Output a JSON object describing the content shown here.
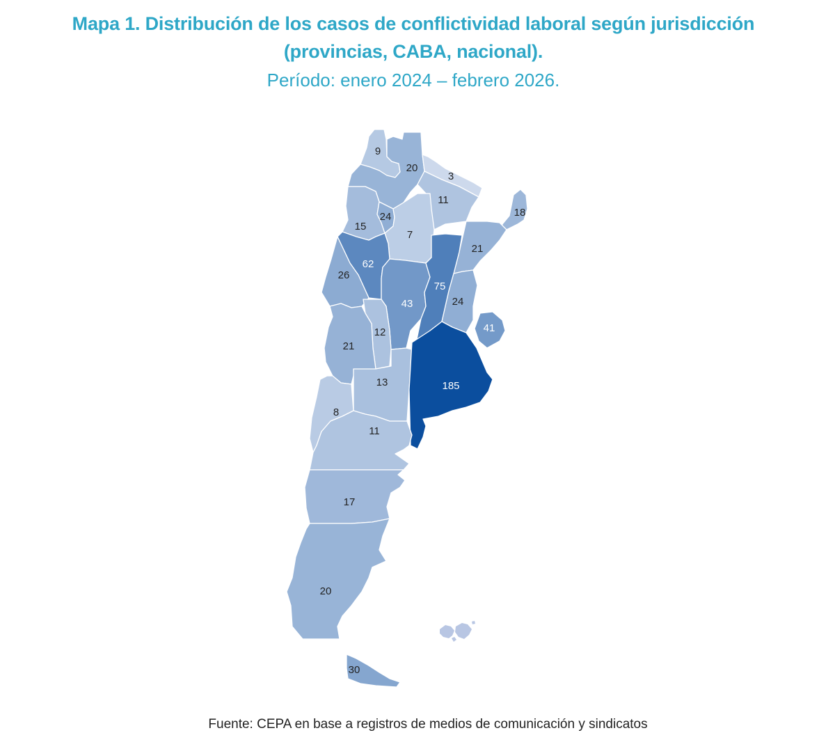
{
  "title": "Mapa 1. Distribución de los casos de conflictividad laboral según jurisdicción",
  "title_line2": "(provincias, CABA, nacional).",
  "subtitle": "Período: enero 2024 – febrero 2026.",
  "source": "Fuente: CEPA en base a registros de medios de comunicación y sindicatos",
  "colors": {
    "title": "#2ea7c7",
    "scale_low": "#d3deef",
    "scale_high": "#0b4e9e"
  },
  "regions": [
    {
      "id": "jujuy",
      "value": "9"
    },
    {
      "id": "salta",
      "value": "20"
    },
    {
      "id": "formosa",
      "value": "3"
    },
    {
      "id": "chaco",
      "value": "11"
    },
    {
      "id": "misiones",
      "value": "18"
    },
    {
      "id": "catamarca",
      "value": "15"
    },
    {
      "id": "tucuman",
      "value": "24"
    },
    {
      "id": "santiago-del-estero",
      "value": "7"
    },
    {
      "id": "corrientes",
      "value": "21"
    },
    {
      "id": "la-rioja",
      "value": "62"
    },
    {
      "id": "san-juan",
      "value": "26"
    },
    {
      "id": "cordoba",
      "value": "43"
    },
    {
      "id": "santa-fe",
      "value": "75"
    },
    {
      "id": "entre-rios",
      "value": "24"
    },
    {
      "id": "uruguay",
      "value": "41"
    },
    {
      "id": "san-luis",
      "value": "12"
    },
    {
      "id": "mendoza",
      "value": "21"
    },
    {
      "id": "la-pampa",
      "value": "13"
    },
    {
      "id": "buenos-aires",
      "value": "185"
    },
    {
      "id": "neuquen",
      "value": "8"
    },
    {
      "id": "rio-negro",
      "value": "11"
    },
    {
      "id": "chubut",
      "value": "17"
    },
    {
      "id": "santa-cruz",
      "value": "20"
    },
    {
      "id": "tierra-del-fuego",
      "value": "30"
    }
  ]
}
